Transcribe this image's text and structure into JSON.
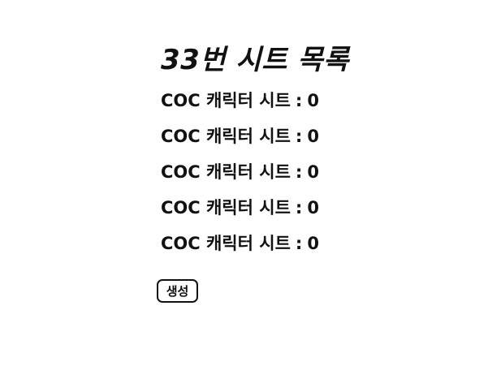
{
  "page": {
    "title": "33번 시트 목록"
  },
  "sheets": [
    {
      "label": "COC 캐릭터 시트",
      "separator": ":",
      "value": "0"
    },
    {
      "label": "COC 캐릭터 시트",
      "separator": ":",
      "value": "0"
    },
    {
      "label": "COC 캐릭터 시트",
      "separator": ":",
      "value": "0"
    },
    {
      "label": "COC 캐릭터 시트",
      "separator": ":",
      "value": "0"
    },
    {
      "label": "COC 캐릭터 시트",
      "separator": ":",
      "value": "0"
    }
  ],
  "actions": {
    "create_label": "생성"
  }
}
